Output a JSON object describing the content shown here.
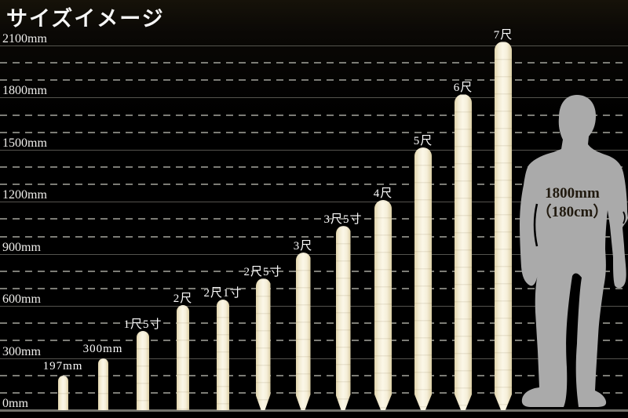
{
  "title": "サイズイメージ",
  "chart_data": {
    "type": "bar",
    "title": "サイズイメージ",
    "orientation": "vertical",
    "unit": "mm",
    "ylim": [
      0,
      2100
    ],
    "y_ticks": [
      "0mm",
      "300mm",
      "600mm",
      "900mm",
      "1200mm",
      "1500mm",
      "1800mm",
      "2100mm"
    ],
    "y_tick_values_mm": [
      0,
      300,
      600,
      900,
      1200,
      1500,
      1800,
      2100
    ],
    "grid": "solid major line every 300mm, dashed minor line every 100mm",
    "legend_position": "none",
    "bars": [
      {
        "label": "197mm",
        "height_mm": 197
      },
      {
        "label": "300mm",
        "height_mm": 300
      },
      {
        "label": "1尺5寸",
        "height_mm": 454.5
      },
      {
        "label": "2尺",
        "height_mm": 606
      },
      {
        "label": "2尺1寸",
        "height_mm": 636.3
      },
      {
        "label": "2尺5寸",
        "height_mm": 757.5
      },
      {
        "label": "3尺",
        "height_mm": 909
      },
      {
        "label": "3尺5寸",
        "height_mm": 1060.5
      },
      {
        "label": "4尺",
        "height_mm": 1212
      },
      {
        "label": "5尺",
        "height_mm": 1515
      },
      {
        "label": "6尺",
        "height_mm": 1818
      },
      {
        "label": "7尺",
        "height_mm": 2121
      }
    ],
    "reference_figure": {
      "type": "human-silhouette",
      "height_mm": 1800,
      "label_line1": "1800mm",
      "label_line2": "（180cm）"
    }
  },
  "colors": {
    "background": "#000000",
    "stake_light": "#fbf7e8",
    "stake_dark": "#dccfa6",
    "grid_solid": "#54534e",
    "grid_dashed": "#7c7c76",
    "baseline": "#72726c",
    "text": "#f7f7f7",
    "silhouette": "#aaaaaa",
    "silhouette_text": "#211a0f"
  }
}
